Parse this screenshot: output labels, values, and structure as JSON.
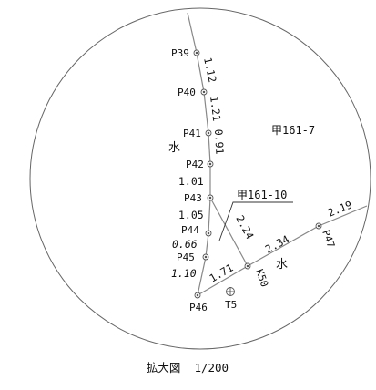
{
  "points": {
    "P39": "P39",
    "P40": "P40",
    "P41": "P41",
    "P42": "P42",
    "P43": "P43",
    "P44": "P44",
    "P45": "P45",
    "P46": "P46",
    "P47": "P47",
    "K50": "K50",
    "T5": "T5"
  },
  "distances": {
    "d39_40": "1.12",
    "d40_41": "1.21",
    "d41_42": "0.91",
    "d42_43": "1.01",
    "d43_44": "1.05",
    "d44_45": "0.66",
    "d45_46": "1.10",
    "d46_50": "1.71",
    "d43_50": "2.24",
    "d50_47": "2.34",
    "d47_out": "2.19"
  },
  "parcels": {
    "parcel_a": "甲161-7",
    "parcel_b": "甲161-10"
  },
  "water_labels": {
    "water_left": "水",
    "water_right": "水"
  },
  "caption": "拡大図  1/200",
  "colors": {
    "line": "#888888",
    "circle": "#666666",
    "text": "#111111"
  }
}
